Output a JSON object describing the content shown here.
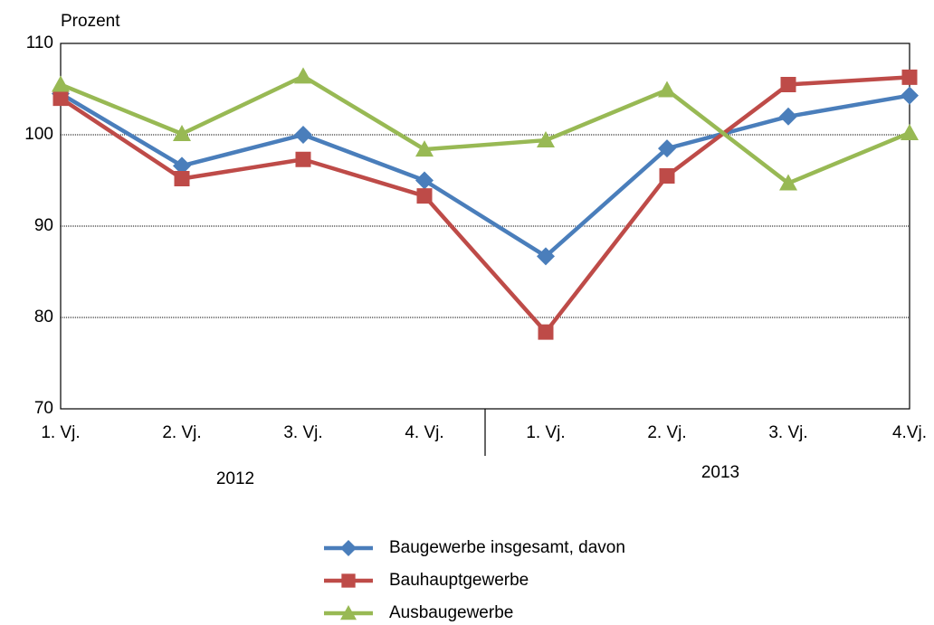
{
  "chart_data": {
    "type": "line",
    "y_label": "Prozent",
    "categories": [
      "1. Vj.",
      "2. Vj.",
      "3. Vj.",
      "4. Vj.",
      "1. Vj.",
      "2. Vj.",
      "3. Vj.",
      "4.Vj."
    ],
    "groups": [
      {
        "name": "2012",
        "size": 4
      },
      {
        "name": "2013",
        "size": 4
      }
    ],
    "series": [
      {
        "name": "Baugewerbe insgesamt, davon",
        "color": "#4a7ebb",
        "marker": "diamond",
        "values": [
          104.5,
          96.6,
          100,
          95,
          86.7,
          98.5,
          102,
          104.3
        ]
      },
      {
        "name": "Bauhauptgewerbe",
        "color": "#be4b48",
        "marker": "square",
        "values": [
          104,
          95.2,
          97.3,
          93.3,
          78.4,
          95.5,
          105.5,
          106.3
        ]
      },
      {
        "name": "Ausbaugewerbe",
        "color": "#98b954",
        "marker": "triangle",
        "values": [
          105.5,
          100.1,
          106.4,
          98.4,
          99.4,
          104.9,
          94.7,
          100.2
        ]
      }
    ],
    "ylim": [
      70,
      110
    ],
    "yticks": [
      70,
      80,
      90,
      100,
      110
    ],
    "grid": true
  }
}
